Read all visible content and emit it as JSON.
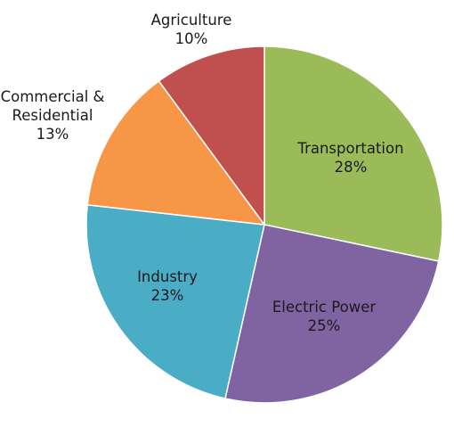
{
  "chart_data": {
    "type": "pie",
    "title": "",
    "start_angle_deg": 0,
    "direction": "clockwise",
    "slices": [
      {
        "label": "Transportation",
        "value": 28,
        "value_label": "28%",
        "color": "#9bbb59"
      },
      {
        "label": "Electric Power",
        "value": 25,
        "value_label": "25%",
        "color": "#8064a2"
      },
      {
        "label": "Industry",
        "value": 23,
        "value_label": "23%",
        "color": "#4bacc6"
      },
      {
        "label": "Commercial & Residential",
        "value": 13,
        "value_label": "13%",
        "color": "#f79646"
      },
      {
        "label": "Agriculture",
        "value": 10,
        "value_label": "10%",
        "color": "#c0504d"
      }
    ]
  }
}
